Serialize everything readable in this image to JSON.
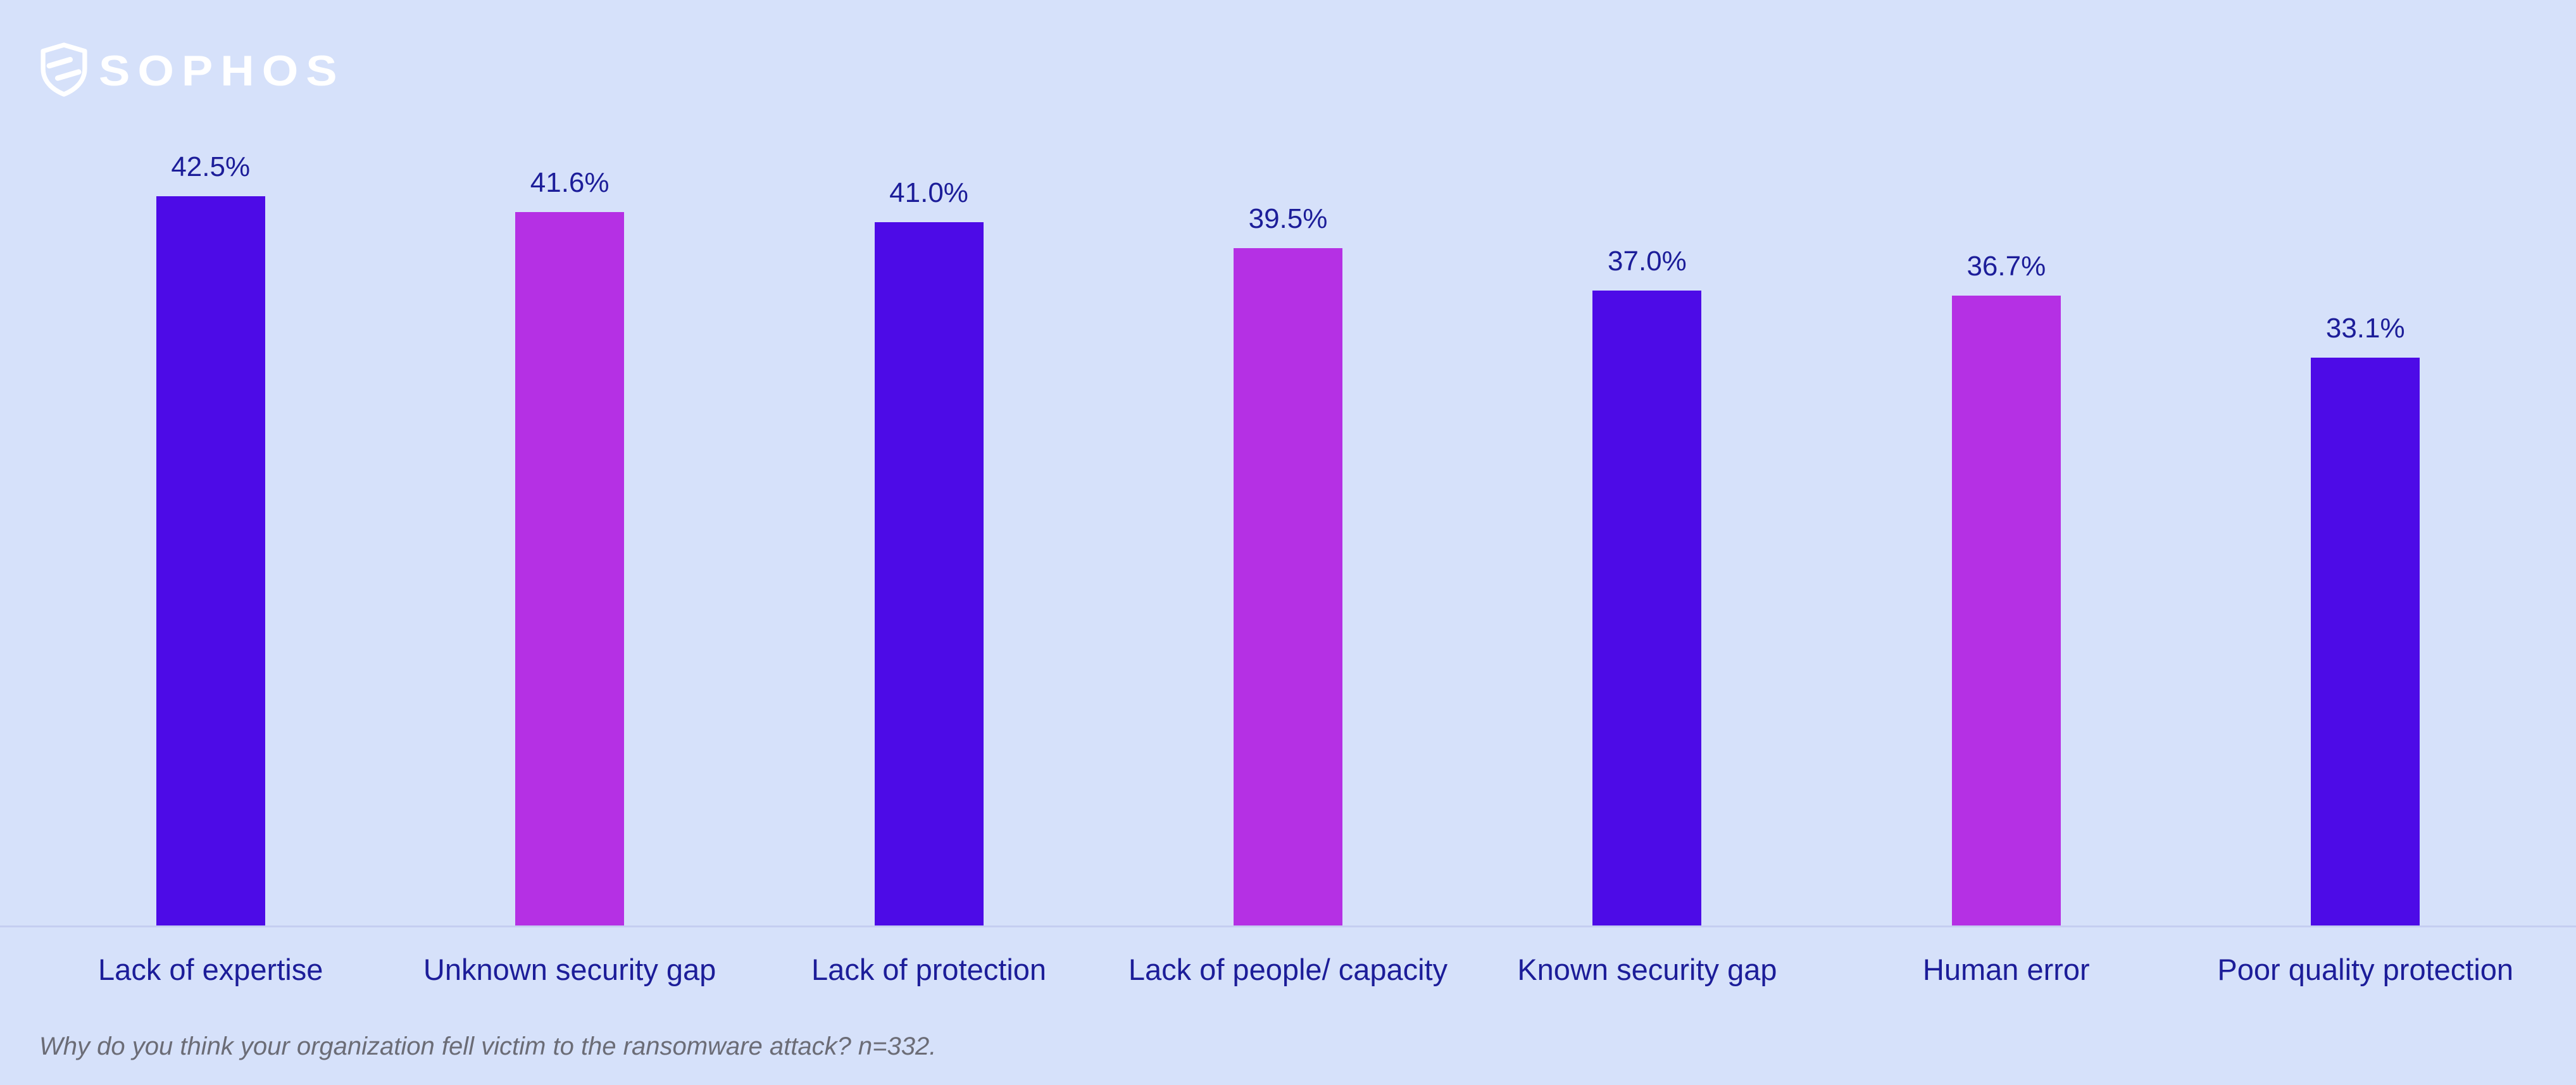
{
  "brand": {
    "logo_text": "SOPHOS"
  },
  "chart_data": {
    "type": "bar",
    "categories": [
      "Lack of expertise",
      "Unknown security gap",
      "Lack of protection",
      "Lack of people/ capacity",
      "Known security gap",
      "Human error",
      "Poor quality protection"
    ],
    "values": [
      42.5,
      41.6,
      41.0,
      39.5,
      37.0,
      36.7,
      33.1
    ],
    "value_labels": [
      "42.5%",
      "41.6%",
      "41.0%",
      "39.5%",
      "37.0%",
      "36.7%",
      "33.1%"
    ],
    "bar_colors": [
      "#4d0be7",
      "#b530e4",
      "#4d0be7",
      "#b530e4",
      "#4d0be7",
      "#b530e4",
      "#4d0be7"
    ],
    "title": "",
    "xlabel": "",
    "ylabel": "",
    "ylim": [
      0,
      45
    ],
    "grid": false,
    "legend": "none",
    "footnote": "Why do you think your organization fell victim to the ransomware attack? n=332.",
    "colors": {
      "background": "#d6e1fa",
      "bar_primary": "#4d0be7",
      "bar_secondary": "#b530e4",
      "label_text": "#1c1d99",
      "footnote_text": "#6b6c76",
      "baseline": "#c5cef1",
      "logo": "#ffffff"
    }
  }
}
